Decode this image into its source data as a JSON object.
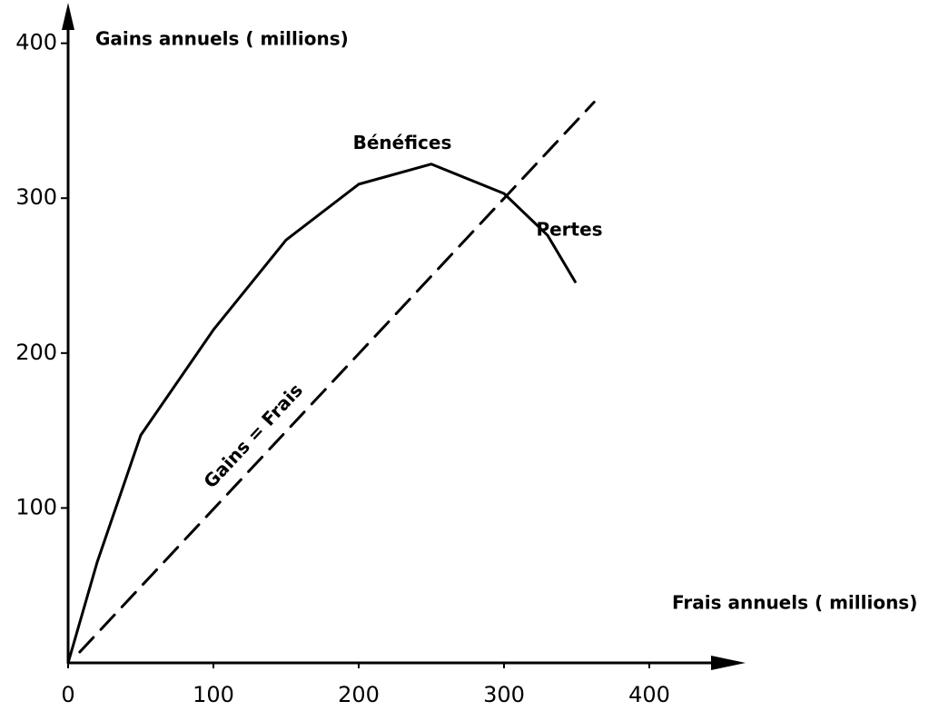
{
  "chart_data": {
    "type": "line",
    "y_label": "Gains annuels ( millions)",
    "x_label": "Frais annuels ( millions)",
    "xlim": [
      0,
      460
    ],
    "ylim": [
      0,
      425
    ],
    "xticks": [
      0,
      100,
      200,
      300,
      400
    ],
    "yticks": [
      100,
      200,
      300,
      400
    ],
    "series": [
      {
        "color": "#000000",
        "dashed": false,
        "x": [
          0,
          20,
          50,
          100,
          150,
          200,
          250,
          300,
          330,
          349
        ],
        "values": [
          0,
          65,
          147,
          215,
          273,
          309,
          322,
          303,
          276,
          246
        ]
      },
      {
        "color": "#000000",
        "dashed": true,
        "x": [
          8,
          362
        ],
        "values": [
          7,
          362
        ]
      }
    ],
    "annotations": [
      {
        "text": "Bénéfices",
        "x": 230,
        "y": 335
      },
      {
        "text": "Pertes",
        "x": 345,
        "y": 279
      },
      {
        "text": "Gains = Frais",
        "x": 128,
        "y": 146,
        "rotation": -47
      }
    ]
  }
}
